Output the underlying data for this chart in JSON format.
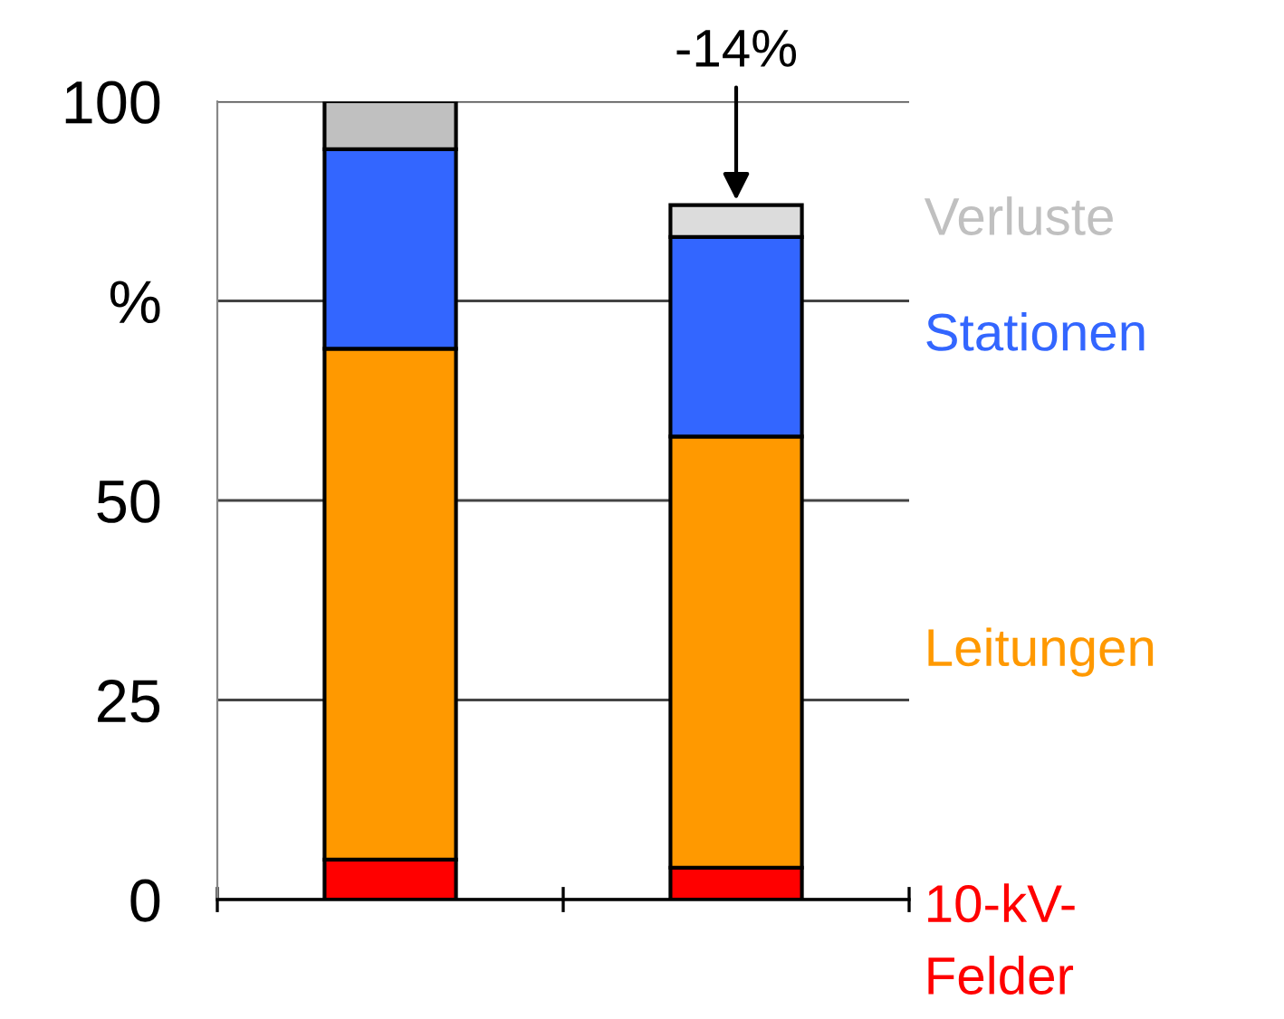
{
  "chart_data": {
    "type": "bar",
    "stacked": true,
    "categories": [
      null,
      null
    ],
    "series": [
      {
        "name": "10-kV-\nFelder",
        "color": "#ff0000",
        "values": [
          5,
          4
        ]
      },
      {
        "name": "Leitungen",
        "color": "#ff9900",
        "values": [
          64,
          54
        ]
      },
      {
        "name": "Stationen",
        "color": "#3366ff",
        "values": [
          25,
          25
        ]
      },
      {
        "name": "Verluste",
        "color": "#c0c0c0",
        "colors": [
          "#c0c0c0",
          "#dcdcdc"
        ],
        "values": [
          6,
          4
        ]
      }
    ],
    "ylim": [
      0,
      100
    ],
    "yticks": [
      0,
      25,
      50,
      {
        "value": 75,
        "label": "%"
      },
      100
    ],
    "grid": "y",
    "legend": "right",
    "annotations": [
      {
        "text": "-14%",
        "y": 87
      }
    ]
  }
}
